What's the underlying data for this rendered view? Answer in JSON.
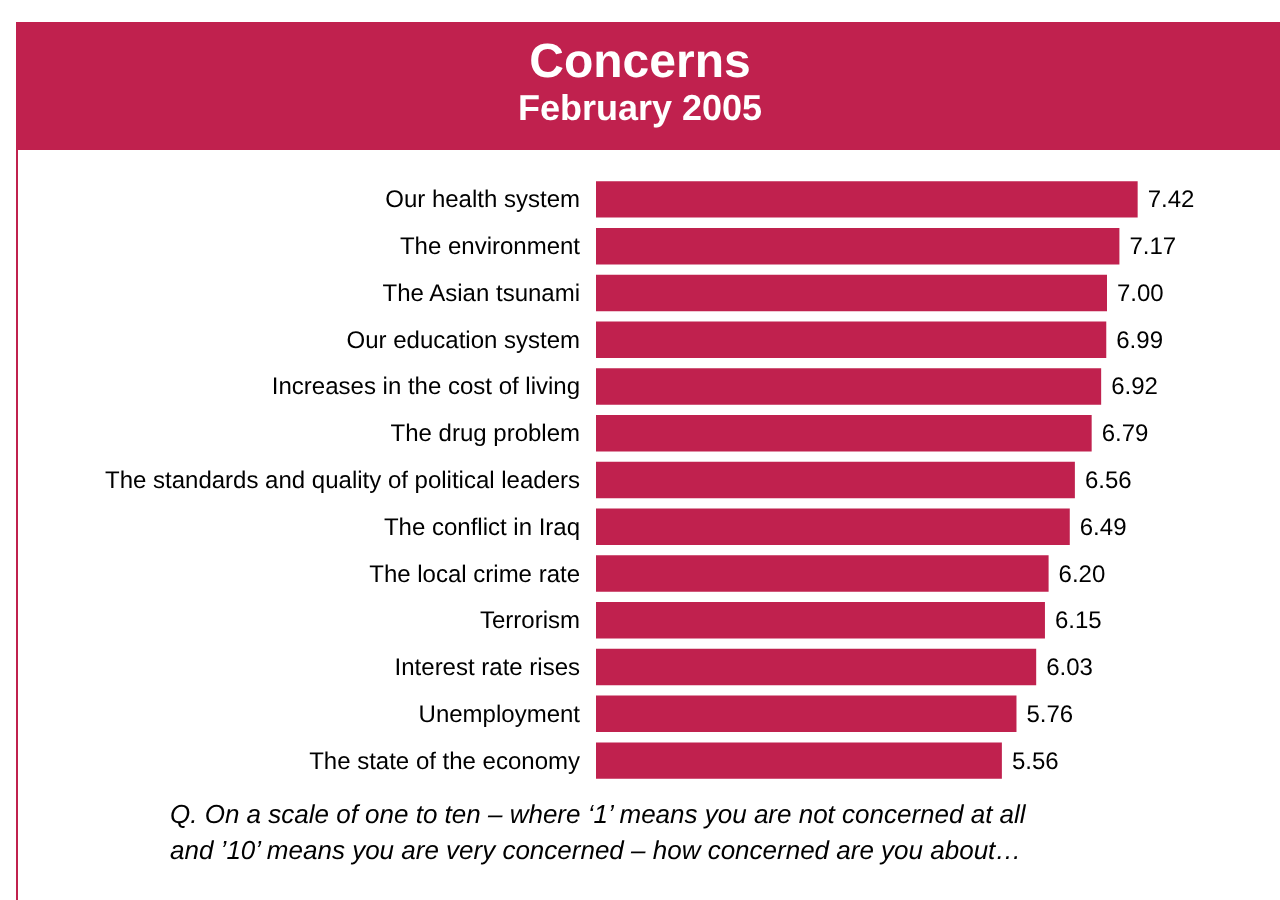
{
  "chart_data": {
    "type": "bar",
    "orientation": "horizontal",
    "title": "Concerns",
    "subtitle": "February 2005",
    "categories": [
      "Our health system",
      "The environment",
      "The Asian tsunami",
      "Our education system",
      "Increases in the cost of living",
      "The drug problem",
      "The standards and quality of political leaders",
      "The conflict in Iraq",
      "The local crime rate",
      "Terrorism",
      "Interest rate rises",
      "Unemployment",
      "The state of the economy"
    ],
    "values": [
      7.42,
      7.17,
      7.0,
      6.99,
      6.92,
      6.79,
      6.56,
      6.49,
      6.2,
      6.15,
      6.03,
      5.76,
      5.56
    ],
    "value_labels": [
      "7.42",
      "7.17",
      "7.00",
      "6.99",
      "6.92",
      "6.79",
      "6.56",
      "6.49",
      "6.20",
      "6.15",
      "6.03",
      "5.76",
      "5.56"
    ],
    "color": "#c0214e",
    "annotations": [
      "Q. On a scale of one to ten – where ‘1’ means you are not concerned at all and ’10’ means you are very concerned – how concerned are you about…"
    ]
  }
}
